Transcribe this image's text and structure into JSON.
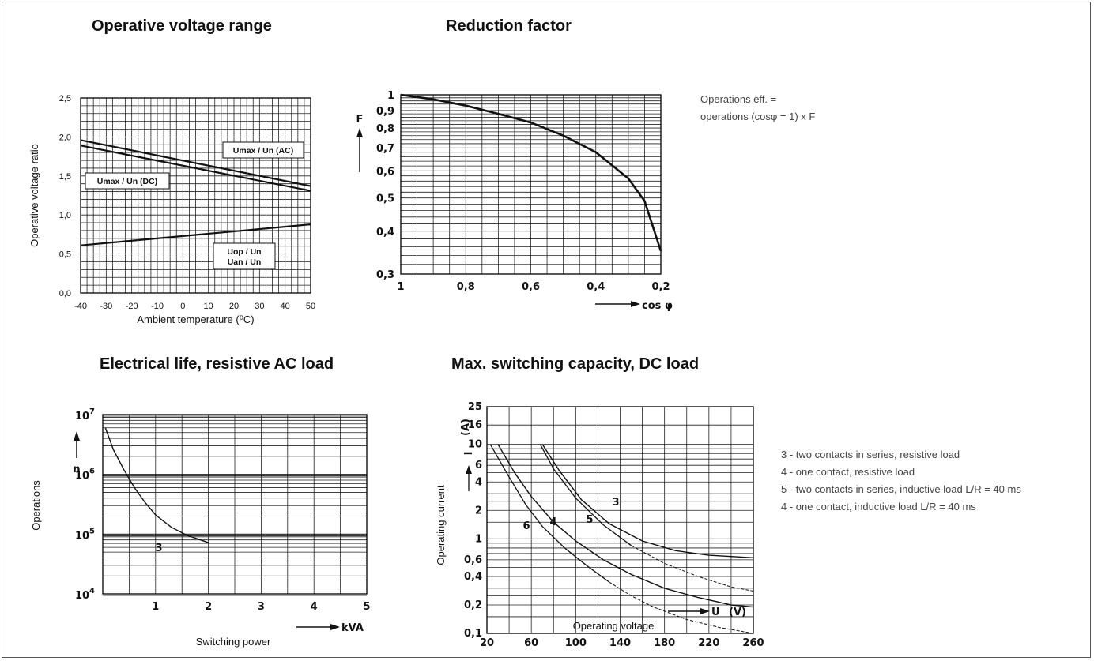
{
  "titles": {
    "t1": "Operative voltage range",
    "t2": "Reduction factor",
    "t3": "Electrical life,  resistive AC load",
    "t4": "Max. switching capacity, DC load"
  },
  "notes": {
    "rf1": "Operations eff. =",
    "rf2": "operations (cosφ = 1) x F",
    "legend": [
      "3 - two contacts in series, resistive load",
      "4 - one contact, resistive load",
      "5 - two contacts in series, inductive load L/R = 40 ms",
      "4 - one contact, inductive load L/R = 40 ms"
    ]
  },
  "chart_data": [
    {
      "type": "line",
      "title": "Operative voltage range",
      "xlabel": "Ambient temperature (⁰C)",
      "ylabel": "Operative voltage ratio",
      "xlim": [
        -40,
        50
      ],
      "ylim": [
        0,
        2.5
      ],
      "x_ticks": [
        "-40",
        "-30",
        "-20",
        "-10",
        "0",
        "10",
        "20",
        "30",
        "40",
        "50"
      ],
      "y_ticks": [
        "0,0",
        "0,5",
        "1,0",
        "1,5",
        "2,0",
        "2,5"
      ],
      "grid": true,
      "series": [
        {
          "name": "Umax / Un (AC)",
          "x": [
            -40,
            50
          ],
          "y": [
            1.96,
            1.37
          ]
        },
        {
          "name": "Umax / Un (DC)",
          "x": [
            -40,
            50
          ],
          "y": [
            1.89,
            1.31
          ]
        },
        {
          "name": "Uop / Un\nUan / Un",
          "x": [
            -40,
            50
          ],
          "y": [
            0.61,
            0.88
          ]
        }
      ],
      "labels": [
        "Umax / Un (AC)",
        "Umax / Un (DC)",
        "Uop / Un",
        "Uan / Un"
      ]
    },
    {
      "type": "line",
      "title": "Reduction factor",
      "xlabel": "cos φ",
      "ylabel": "F",
      "x_ticks": [
        "1",
        "0,8",
        "0,6",
        "0,4",
        "0,2"
      ],
      "y_ticks": [
        "0,3",
        "0,4",
        "0,5",
        "0,6",
        "0,7",
        "0,8",
        "0,9",
        "1"
      ],
      "xlim": [
        1,
        0.2
      ],
      "ylim": [
        0.3,
        1
      ],
      "y_scale": "log",
      "grid": true,
      "series": [
        {
          "x": [
            1,
            0.9,
            0.8,
            0.7,
            0.6,
            0.5,
            0.4,
            0.3,
            0.25,
            0.2
          ],
          "y": [
            1,
            0.97,
            0.93,
            0.88,
            0.83,
            0.76,
            0.68,
            0.57,
            0.49,
            0.35
          ]
        }
      ]
    },
    {
      "type": "line",
      "title": "Electrical life,  resistive AC load",
      "xlabel": "Switching power",
      "x_unit": "kVA",
      "ylabel": "Operations",
      "y_symbol": "n",
      "x_ticks": [
        "1",
        "2",
        "3",
        "4",
        "5"
      ],
      "y_ticks": [
        "10^4",
        "10^5",
        "10^6",
        "10^7"
      ],
      "xlim": [
        0,
        5
      ],
      "ylim": [
        10000,
        10000000
      ],
      "y_scale": "log",
      "grid": true,
      "series": [
        {
          "name": "3",
          "x": [
            0.05,
            0.2,
            0.4,
            0.6,
            0.8,
            1.0,
            1.3,
            1.6,
            2.0
          ],
          "y": [
            6000000,
            2600000,
            1200000,
            600000,
            340000,
            210000,
            130000,
            95000,
            72000
          ]
        }
      ]
    },
    {
      "type": "line",
      "title": "Max. switching capacity, DC load",
      "xlabel": "Operating voltage",
      "ylabel": "Operating current",
      "x_symbol": "U",
      "x_unit": "(V)",
      "y_symbol": "I",
      "y_unit": "(A)",
      "x_ticks": [
        "20",
        "60",
        "100",
        "140",
        "180",
        "220",
        "260"
      ],
      "y_ticks": [
        "0,1",
        "0,2",
        "0,4",
        "0,6",
        "1",
        "2",
        "4",
        "6",
        "10",
        "16",
        "25"
      ],
      "xlim": [
        20,
        260
      ],
      "ylim": [
        0.1,
        25
      ],
      "y_scale": "log",
      "grid": true,
      "series": [
        {
          "name": "6",
          "x": [
            23,
            40,
            55,
            70,
            90,
            110,
            130,
            150,
            170,
            200,
            230,
            260
          ],
          "y": [
            10,
            4.5,
            2.3,
            1.35,
            0.8,
            0.52,
            0.35,
            0.25,
            0.19,
            0.14,
            0.115,
            0.1
          ]
        },
        {
          "name": "4",
          "x": [
            30,
            45,
            60,
            80,
            100,
            125,
            150,
            180,
            210,
            240,
            260
          ],
          "y": [
            10,
            5,
            2.8,
            1.5,
            0.95,
            0.6,
            0.42,
            0.3,
            0.24,
            0.2,
            0.19
          ]
        },
        {
          "name": "5",
          "x": [
            68,
            80,
            100,
            125,
            150,
            180,
            210,
            240,
            260
          ],
          "y": [
            10,
            5.5,
            2.7,
            1.4,
            0.85,
            0.55,
            0.4,
            0.31,
            0.28
          ]
        },
        {
          "name": "3",
          "x": [
            70,
            85,
            105,
            130,
            160,
            190,
            220,
            260
          ],
          "y": [
            10,
            5.3,
            2.6,
            1.45,
            0.95,
            0.75,
            0.67,
            0.63
          ]
        }
      ]
    }
  ]
}
